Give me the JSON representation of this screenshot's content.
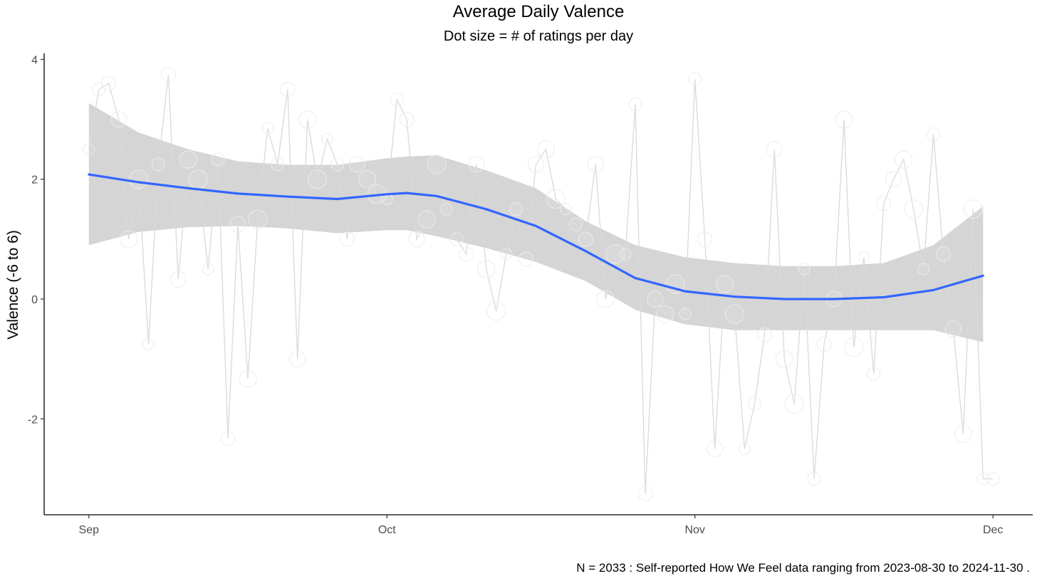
{
  "chart_data": {
    "type": "line",
    "title": "Average Daily Valence",
    "subtitle": "Dot size = # of ratings per day",
    "xlabel": "",
    "ylabel": "Valence (-6 to 6)",
    "caption": "N = 2033 : Self-reported How We Feel data ranging from 2023-08-30 to 2024-11-30 .",
    "xlim": [
      -4.5,
      95
    ],
    "ylim": [
      -3.6,
      4.1
    ],
    "x_ticks": [
      {
        "value": 0,
        "label": "Sep"
      },
      {
        "value": 30,
        "label": "Oct"
      },
      {
        "value": 61,
        "label": "Nov"
      },
      {
        "value": 91,
        "label": "Dec"
      }
    ],
    "y_ticks": [
      {
        "value": -2,
        "label": "-2"
      },
      {
        "value": 0,
        "label": "0"
      },
      {
        "value": 2,
        "label": "2"
      },
      {
        "value": 4,
        "label": "4"
      }
    ],
    "colors": {
      "raw": "#d9d9d9",
      "smooth": "#3366ff",
      "band": "#d3d3d3",
      "axis": "#000000"
    },
    "series": [
      {
        "name": "Daily average valence",
        "x": [
          0,
          1,
          2,
          3,
          4,
          5,
          6,
          7,
          8,
          9,
          10,
          11,
          12,
          13,
          14,
          15,
          16,
          17,
          18,
          19,
          20,
          21,
          22,
          23,
          24,
          25,
          26,
          27,
          28,
          29,
          30,
          31,
          32,
          33,
          34,
          35,
          36,
          37,
          38,
          39,
          40,
          41,
          42,
          43,
          44,
          45,
          46,
          47,
          48,
          49,
          50,
          51,
          52,
          53,
          54,
          55,
          56,
          57,
          58,
          59,
          60,
          61,
          62,
          63,
          64,
          65,
          66,
          67,
          68,
          69,
          70,
          71,
          72,
          73,
          74,
          75,
          76,
          77,
          78,
          79,
          80,
          81,
          82,
          83,
          84,
          85,
          86,
          87,
          88,
          89,
          90,
          91
        ],
        "y": [
          2.5,
          3.5,
          3.6,
          3.0,
          1.0,
          2.0,
          -0.75,
          2.25,
          3.75,
          0.33,
          2.33,
          2.0,
          0.5,
          2.33,
          -2.33,
          1.25,
          -1.33,
          1.33,
          2.85,
          2.25,
          3.5,
          -1.0,
          3.0,
          2.0,
          2.67,
          2.25,
          1.0,
          2.25,
          2.0,
          1.75,
          1.67,
          3.33,
          3.0,
          1.0,
          1.33,
          2.25,
          1.5,
          1.0,
          0.75,
          2.25,
          0.5,
          -0.2,
          0.75,
          1.5,
          0.67,
          2.25,
          2.5,
          1.67,
          1.5,
          1.25,
          1.0,
          2.25,
          0.0,
          0.75,
          0.75,
          3.25,
          -3.25,
          0.0,
          -0.25,
          0.25,
          -0.25,
          3.67,
          1.0,
          -2.5,
          0.25,
          -0.25,
          -2.5,
          -1.75,
          -0.6,
          2.5,
          -1.0,
          -1.75,
          0.5,
          -3.0,
          -0.75,
          0.0,
          3.0,
          -0.8,
          0.7,
          -1.25,
          1.6,
          2.0,
          2.33,
          1.5,
          0.5,
          2.75,
          0.75,
          -0.5,
          -2.25,
          1.5,
          -3.0,
          -3.0
        ]
      },
      {
        "name": "Smoothed trend",
        "x": [
          0,
          5,
          10,
          15,
          20,
          25,
          30,
          32,
          35,
          40,
          45,
          50,
          55,
          60,
          65,
          70,
          75,
          80,
          85,
          90
        ],
        "y": [
          2.08,
          1.95,
          1.85,
          1.76,
          1.71,
          1.67,
          1.75,
          1.77,
          1.72,
          1.5,
          1.22,
          0.8,
          0.35,
          0.13,
          0.04,
          0.0,
          0.0,
          0.03,
          0.15,
          0.39
        ]
      },
      {
        "name": "95% confidence band",
        "x": [
          0,
          5,
          10,
          15,
          20,
          25,
          30,
          32,
          35,
          40,
          45,
          50,
          55,
          60,
          65,
          70,
          75,
          80,
          85,
          90
        ],
        "lower": [
          0.9,
          1.12,
          1.2,
          1.22,
          1.18,
          1.1,
          1.15,
          1.15,
          1.05,
          0.85,
          0.62,
          0.3,
          -0.18,
          -0.42,
          -0.52,
          -0.52,
          -0.52,
          -0.52,
          -0.52,
          -0.72
        ],
        "upper": [
          3.27,
          2.78,
          2.5,
          2.3,
          2.24,
          2.24,
          2.35,
          2.38,
          2.4,
          2.15,
          1.85,
          1.3,
          0.9,
          0.7,
          0.6,
          0.55,
          0.55,
          0.6,
          0.9,
          1.55
        ]
      }
    ]
  }
}
